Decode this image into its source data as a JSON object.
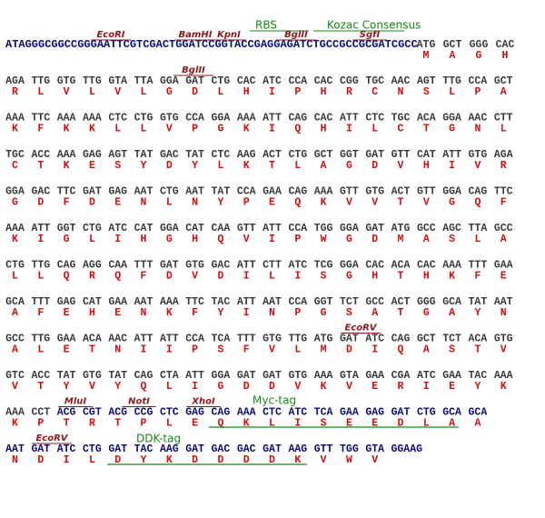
{
  "header_line": {
    "annotations": [
      "RBS",
      "Kozac Consensus"
    ],
    "enzymes": [
      "EcoRI",
      "BamHI",
      "KpnI",
      "BglII",
      "SgfI"
    ],
    "sequence": "ATAGGGCGGCCGGGAATTCGTCGACTGGATCCGGTACCGAGGAGATCTGCCGCCGCGATCGCC",
    "codons": [
      "ATG",
      "GCT",
      "GGG",
      "CAC"
    ],
    "amino_acids": [
      "M",
      "A",
      "G",
      "H"
    ]
  },
  "rows": [
    {
      "enzymes": [
        "BglII"
      ],
      "codons": [
        "AGA",
        "TTG",
        "GTG",
        "TTG",
        "GTA",
        "TTA",
        "GGA",
        "GAT",
        "CTG",
        "CAC",
        "ATC",
        "CCA",
        "CAC",
        "CGG",
        "TGC",
        "AAC",
        "AGT",
        "TTG",
        "CCA",
        "GCT"
      ],
      "amino_acids": [
        "R",
        "L",
        "V",
        "L",
        "V",
        "L",
        "G",
        "D",
        "L",
        "H",
        "I",
        "P",
        "H",
        "R",
        "C",
        "N",
        "S",
        "L",
        "P",
        "A"
      ]
    },
    {
      "codons": [
        "AAA",
        "TTC",
        "AAA",
        "AAA",
        "CTC",
        "CTG",
        "GTG",
        "CCA",
        "GGA",
        "AAA",
        "ATT",
        "CAG",
        "CAC",
        "ATT",
        "CTC",
        "TGC",
        "ACA",
        "GGA",
        "AAC",
        "CTT"
      ],
      "amino_acids": [
        "K",
        "F",
        "K",
        "K",
        "L",
        "L",
        "V",
        "P",
        "G",
        "K",
        "I",
        "Q",
        "H",
        "I",
        "L",
        "C",
        "T",
        "G",
        "N",
        "L"
      ]
    },
    {
      "codons": [
        "TGC",
        "ACC",
        "AAA",
        "GAG",
        "AGT",
        "TAT",
        "GAC",
        "TAT",
        "CTC",
        "AAG",
        "ACT",
        "CTG",
        "GCT",
        "GGT",
        "GAT",
        "GTT",
        "CAT",
        "ATT",
        "GTG",
        "AGA"
      ],
      "amino_acids": [
        "C",
        "T",
        "K",
        "E",
        "S",
        "Y",
        "D",
        "Y",
        "L",
        "K",
        "T",
        "L",
        "A",
        "G",
        "D",
        "V",
        "H",
        "I",
        "V",
        "R"
      ]
    },
    {
      "codons": [
        "GGA",
        "GAC",
        "TTC",
        "GAT",
        "GAG",
        "AAT",
        "CTG",
        "AAT",
        "TAT",
        "CCA",
        "GAA",
        "CAG",
        "AAA",
        "GTT",
        "GTG",
        "ACT",
        "GTT",
        "GGA",
        "CAG",
        "TTC"
      ],
      "amino_acids": [
        "G",
        "D",
        "F",
        "D",
        "E",
        "N",
        "L",
        "N",
        "Y",
        "P",
        "E",
        "Q",
        "K",
        "V",
        "V",
        "T",
        "V",
        "G",
        "Q",
        "F"
      ]
    },
    {
      "codons": [
        "AAA",
        "ATT",
        "GGT",
        "CTG",
        "ATC",
        "CAT",
        "GGA",
        "CAT",
        "CAA",
        "GTT",
        "ATT",
        "CCA",
        "TGG",
        "GGA",
        "GAT",
        "ATG",
        "GCC",
        "AGC",
        "TTA",
        "GCC"
      ],
      "amino_acids": [
        "K",
        "I",
        "G",
        "L",
        "I",
        "H",
        "G",
        "H",
        "Q",
        "V",
        "I",
        "P",
        "W",
        "G",
        "D",
        "M",
        "A",
        "S",
        "L",
        "A"
      ]
    },
    {
      "codons": [
        "CTG",
        "TTG",
        "CAG",
        "AGG",
        "CAA",
        "TTT",
        "GAT",
        "GTG",
        "GAC",
        "ATT",
        "CTT",
        "ATC",
        "TCG",
        "GGA",
        "CAC",
        "ACA",
        "CAC",
        "AAA",
        "TTT",
        "GAA"
      ],
      "amino_acids": [
        "L",
        "L",
        "Q",
        "R",
        "Q",
        "F",
        "D",
        "V",
        "D",
        "I",
        "L",
        "I",
        "S",
        "G",
        "H",
        "T",
        "H",
        "K",
        "F",
        "E"
      ]
    },
    {
      "codons": [
        "GCA",
        "TTT",
        "GAG",
        "CAT",
        "GAA",
        "AAT",
        "AAA",
        "TTC",
        "TAC",
        "ATT",
        "AAT",
        "CCA",
        "GGT",
        "TCT",
        "GCC",
        "ACT",
        "GGG",
        "GCA",
        "TAT",
        "AAT"
      ],
      "amino_acids": [
        "A",
        "F",
        "E",
        "H",
        "E",
        "N",
        "K",
        "F",
        "Y",
        "I",
        "N",
        "P",
        "G",
        "S",
        "A",
        "T",
        "G",
        "A",
        "Y",
        "N"
      ]
    },
    {
      "enzymes": [
        "EcoRV"
      ],
      "codons": [
        "GCC",
        "TTG",
        "GAA",
        "ACA",
        "AAC",
        "ATT",
        "ATT",
        "CCA",
        "TCA",
        "TTT",
        "GTG",
        "TTG",
        "ATG",
        "GAT",
        "ATC",
        "CAG",
        "GCT",
        "TCT",
        "ACA",
        "GTG"
      ],
      "amino_acids": [
        "A",
        "L",
        "E",
        "T",
        "N",
        "I",
        "I",
        "P",
        "S",
        "F",
        "V",
        "L",
        "M",
        "D",
        "I",
        "Q",
        "A",
        "S",
        "T",
        "V"
      ]
    },
    {
      "codons": [
        "GTC",
        "ACC",
        "TAT",
        "GTG",
        "TAT",
        "CAG",
        "CTA",
        "ATT",
        "GGA",
        "GAT",
        "GAT",
        "GTG",
        "AAA",
        "GTA",
        "GAA",
        "CGA",
        "ATC",
        "GAA",
        "TAC",
        "AAA"
      ],
      "amino_acids": [
        "V",
        "T",
        "Y",
        "V",
        "Y",
        "Q",
        "L",
        "I",
        "G",
        "D",
        "D",
        "V",
        "K",
        "V",
        "E",
        "R",
        "I",
        "E",
        "Y",
        "K"
      ]
    },
    {
      "enzymes": [
        "MluI",
        "NotI",
        "XhoI"
      ],
      "tags": [
        "Myc-tag"
      ],
      "codons": [
        "AAA",
        "CCT",
        "ACG",
        "CGT",
        "ACG",
        "CCG",
        "CTC",
        "GAG",
        "CAG",
        "AAA",
        "CTC",
        "ATC",
        "TCA",
        "GAA",
        "GAG",
        "GAT",
        "CTG",
        "GCA",
        "GCA"
      ],
      "amino_acids": [
        "K",
        "P",
        "T",
        "R",
        "T",
        "P",
        "L",
        "E",
        "Q",
        "K",
        "L",
        "I",
        "S",
        "E",
        "E",
        "D",
        "L",
        "A",
        "A"
      ]
    },
    {
      "enzymes": [
        "EcoRV"
      ],
      "tags": [
        "DDK-tag"
      ],
      "codons": [
        "AAT",
        "GAT",
        "ATC",
        "CTG",
        "GAT",
        "TAC",
        "AAG",
        "GAT",
        "GAC",
        "GAC",
        "GAT",
        "AAG",
        "GTT",
        "TGG",
        "GTA",
        "GGAAG"
      ],
      "amino_acids": [
        "N",
        "D",
        "I",
        "L",
        "D",
        "Y",
        "K",
        "D",
        "D",
        "D",
        "D",
        "K",
        "V",
        "W",
        "V"
      ]
    }
  ]
}
